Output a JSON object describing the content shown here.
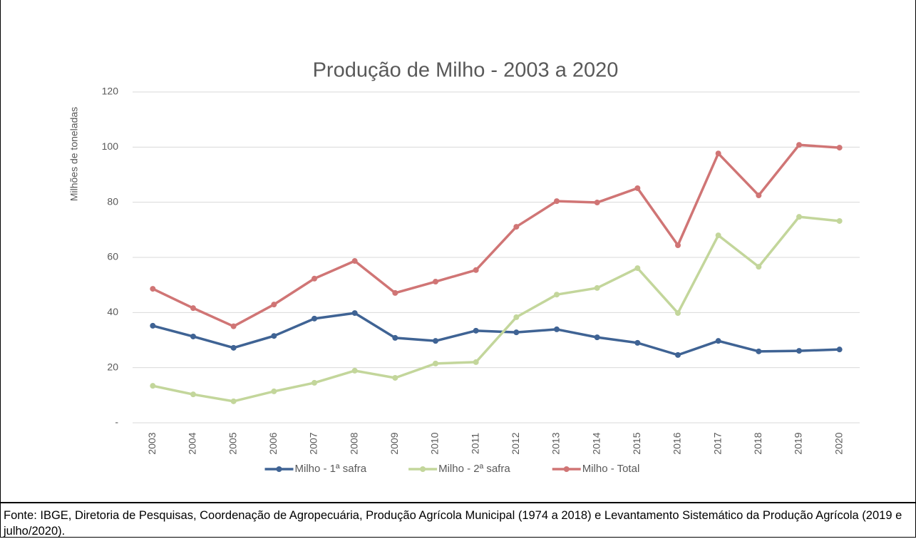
{
  "chart_data": {
    "type": "line",
    "title": "Produção de Milho - 2003 a 2020",
    "y_label": "Milhões de toneladas",
    "categories": [
      "2003",
      "2004",
      "2005",
      "2006",
      "2007",
      "2008",
      "2009",
      "2010",
      "2011",
      "2012",
      "2013",
      "2014",
      "2015",
      "2016",
      "2017",
      "2018",
      "2019",
      "2020"
    ],
    "series": [
      {
        "name": "Milho - 1ª safra",
        "color": "#3f6394",
        "values": [
          35.2,
          31.3,
          27.2,
          31.5,
          37.8,
          39.8,
          30.8,
          29.7,
          33.4,
          32.8,
          33.9,
          31.0,
          29.0,
          24.6,
          29.7,
          25.9,
          26.1,
          26.6
        ]
      },
      {
        "name": "Milho - 2ª safra",
        "color": "#c3d69b",
        "values": [
          13.4,
          10.3,
          7.8,
          11.4,
          14.5,
          18.9,
          16.3,
          21.5,
          22.0,
          38.3,
          46.5,
          48.9,
          56.1,
          39.8,
          68.0,
          56.6,
          74.7,
          73.2
        ]
      },
      {
        "name": "Milho - Total",
        "color": "#d07575",
        "values": [
          48.6,
          41.6,
          35.0,
          42.9,
          52.3,
          58.7,
          47.1,
          51.2,
          55.4,
          71.1,
          80.4,
          79.9,
          85.1,
          64.4,
          97.7,
          82.5,
          100.8,
          99.8
        ]
      }
    ],
    "ylim": [
      0,
      120
    ],
    "yticks": [
      {
        "value": 0,
        "label": "-"
      },
      20,
      40,
      60,
      80,
      100,
      120
    ],
    "grid": true,
    "legend": "bottom",
    "source": "Fonte: IBGE, Diretoria de Pesquisas, Coordenação de Agropecuária, Produção Agrícola Municipal (1974 a 2018) e Levantamento Sistemático da Produção Agrícola (2019 e julho/2020)."
  }
}
